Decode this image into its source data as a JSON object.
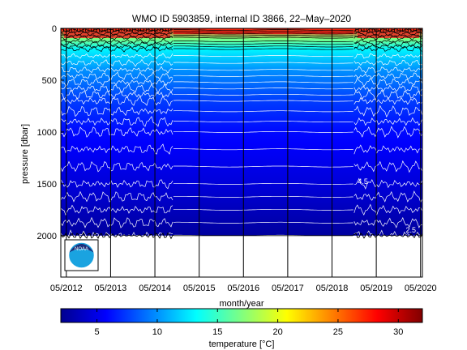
{
  "chart_data": [
    {
      "type": "heatmap",
      "title": "WMO ID 5903859, internal ID 3866, 22–May–2020",
      "xlabel": "month/year",
      "ylabel": "pressure [dbar]",
      "x_ticks": [
        "05/2012",
        "05/2013",
        "05/2014",
        "05/2015",
        "05/2016",
        "05/2017",
        "05/2018",
        "05/2019",
        "05/2020"
      ],
      "y_ticks": [
        0,
        500,
        1000,
        1500,
        2000
      ],
      "ylim": [
        2400,
        0
      ],
      "y_reversed": true,
      "profile_depth_dbar": 2000,
      "interpolated_gap": [
        "10/2014",
        "11/2018"
      ],
      "contour_labels": [
        {
          "text": "4.5",
          "month": "12/2018",
          "pressure": 1500
        },
        {
          "text": "2.5",
          "month": "01/2020",
          "pressure": 1970
        }
      ],
      "logo": "NOAA",
      "temperature_profile": [
        {
          "pressure": 0,
          "temperature": 28
        },
        {
          "pressure": 50,
          "temperature": 22
        },
        {
          "pressure": 100,
          "temperature": 17
        },
        {
          "pressure": 200,
          "temperature": 13
        },
        {
          "pressure": 400,
          "temperature": 10
        },
        {
          "pressure": 700,
          "temperature": 7.5
        },
        {
          "pressure": 1000,
          "temperature": 6
        },
        {
          "pressure": 1500,
          "temperature": 4.5
        },
        {
          "pressure": 2000,
          "temperature": 2.5
        }
      ],
      "contour_levels": [
        2.5,
        3,
        3.5,
        4,
        4.5,
        5,
        5.5,
        6,
        6.5,
        7,
        7.5,
        8,
        8.5,
        9,
        9.5,
        10,
        11,
        12,
        13,
        14,
        15,
        16,
        18,
        20,
        22,
        24,
        26
      ],
      "grid": false
    },
    {
      "type": "colorbar",
      "label": "temperature [°C]",
      "range": [
        2,
        32
      ],
      "ticks": [
        5,
        10,
        15,
        20,
        25,
        30
      ],
      "colormap": [
        "#00008f",
        "#0000ff",
        "#0080ff",
        "#00ffff",
        "#80ff80",
        "#ffff00",
        "#ff8000",
        "#ff0000",
        "#800000"
      ]
    }
  ]
}
